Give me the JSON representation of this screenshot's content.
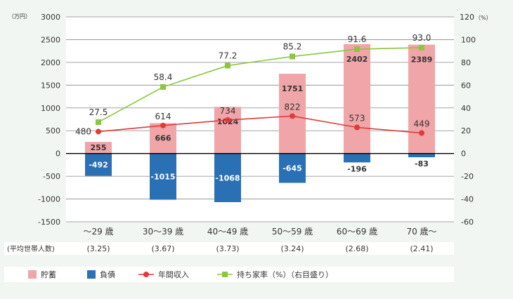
{
  "chart_data": {
    "type": "bar",
    "categories": [
      "～29 歳",
      "30～39 歳",
      "40～49 歳",
      "50～59 歳",
      "60～69 歳",
      "70 歳～"
    ],
    "y_left": {
      "unit_label": "（万円）",
      "ylim": [
        -1500,
        3000
      ],
      "ticks": [
        "3000",
        "2500",
        "2000",
        "1500",
        "1000",
        "500",
        "0",
        "-500",
        "-1000",
        "-1500"
      ]
    },
    "y_right": {
      "unit_label": "120（%）",
      "ylim": [
        -60,
        120
      ],
      "ticks": [
        "120",
        "100",
        "80",
        "60",
        "40",
        "20",
        "0",
        "-20",
        "-40",
        "-60"
      ]
    },
    "series": [
      {
        "name": "貯蓄",
        "kind": "bar",
        "color": "#f0a5a8",
        "values": [
          255,
          666,
          1024,
          1751,
          2402,
          2389
        ],
        "labels": [
          "255",
          "666",
          "1024",
          "1751",
          "2402",
          "2389"
        ]
      },
      {
        "name": "負債",
        "kind": "bar",
        "color": "#2a70b4",
        "values": [
          -492,
          -1015,
          -1068,
          -645,
          -196,
          -83
        ],
        "labels": [
          "-492",
          "-1015",
          "-1068",
          "-645",
          "-196",
          "-83"
        ]
      },
      {
        "name": "年間収入",
        "kind": "line",
        "axis": "left",
        "color": "#e03a3a",
        "values": [
          480,
          614,
          734,
          822,
          573,
          449
        ],
        "labels": [
          "480",
          "614",
          "734",
          "822",
          "573",
          "449"
        ]
      },
      {
        "name": "持ち家率（%）",
        "kind": "line",
        "axis": "right",
        "color": "#8cc63f",
        "values": [
          27.5,
          58.4,
          77.2,
          85.2,
          91.6,
          93.0
        ],
        "labels": [
          "27.5",
          "58.4",
          "77.2",
          "85.2",
          "91.6",
          "93.0"
        ]
      }
    ],
    "household_row": {
      "label": "(平均世帯人数)",
      "values": [
        "(3.25)",
        "(3.67)",
        "(3.73)",
        "(3.24)",
        "(2.68)",
        "(2.41)"
      ]
    },
    "legend": {
      "placement": "bottom",
      "items": [
        {
          "text": "貯蓄",
          "symbol": "box",
          "color": "#f0a5a8"
        },
        {
          "text": "負債",
          "symbol": "box",
          "color": "#2a70b4"
        },
        {
          "text": "年間収入",
          "symbol": "line-circle",
          "color": "#e03a3a"
        },
        {
          "text": "持ち家率（%）（右目盛り）",
          "symbol": "line-square",
          "color": "#8cc63f"
        }
      ]
    },
    "grid": true
  }
}
